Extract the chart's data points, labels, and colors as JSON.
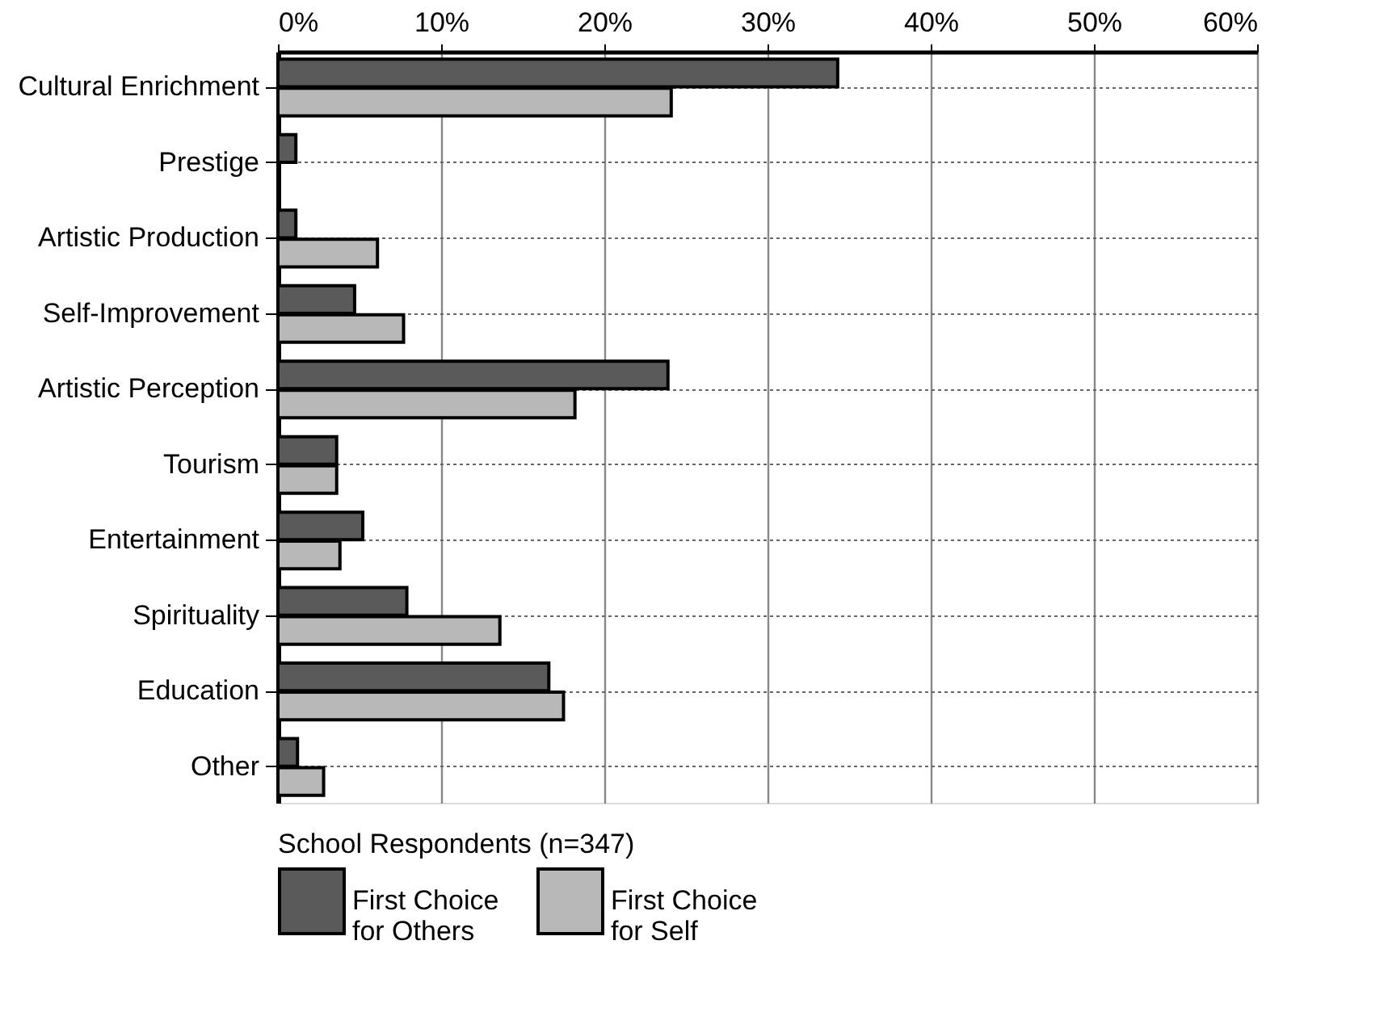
{
  "chart_data": {
    "type": "bar",
    "orientation": "horizontal",
    "categories": [
      "Cultural Enrichment",
      "Prestige",
      "Artistic Production",
      "Self-Improvement",
      "Artistic Perception",
      "Tourism",
      "Entertainment",
      "Spirituality",
      "Education",
      "Other"
    ],
    "series": [
      {
        "name": "First Choice for Others",
        "color": "#5a5a5a",
        "values": [
          34.3,
          1.1,
          1.1,
          4.7,
          23.9,
          3.6,
          5.2,
          7.9,
          16.6,
          1.2
        ]
      },
      {
        "name": "First Choice for Self",
        "color": "#b8b8b8",
        "values": [
          24.1,
          0,
          6.1,
          7.7,
          18.2,
          3.6,
          3.8,
          13.6,
          17.5,
          2.8
        ]
      }
    ],
    "legend_title": "School Respondents (n=347)",
    "legend": "bottom left",
    "xlim": [
      0,
      60
    ],
    "xticks": [
      {
        "value": 0,
        "label": "0%"
      },
      {
        "value": 10,
        "label": "10%"
      },
      {
        "value": 20,
        "label": "20%"
      },
      {
        "value": 30,
        "label": "30%"
      },
      {
        "value": 40,
        "label": "40%"
      },
      {
        "value": 50,
        "label": "50%"
      },
      {
        "value": 60,
        "label": "60%"
      }
    ],
    "grid": true
  }
}
